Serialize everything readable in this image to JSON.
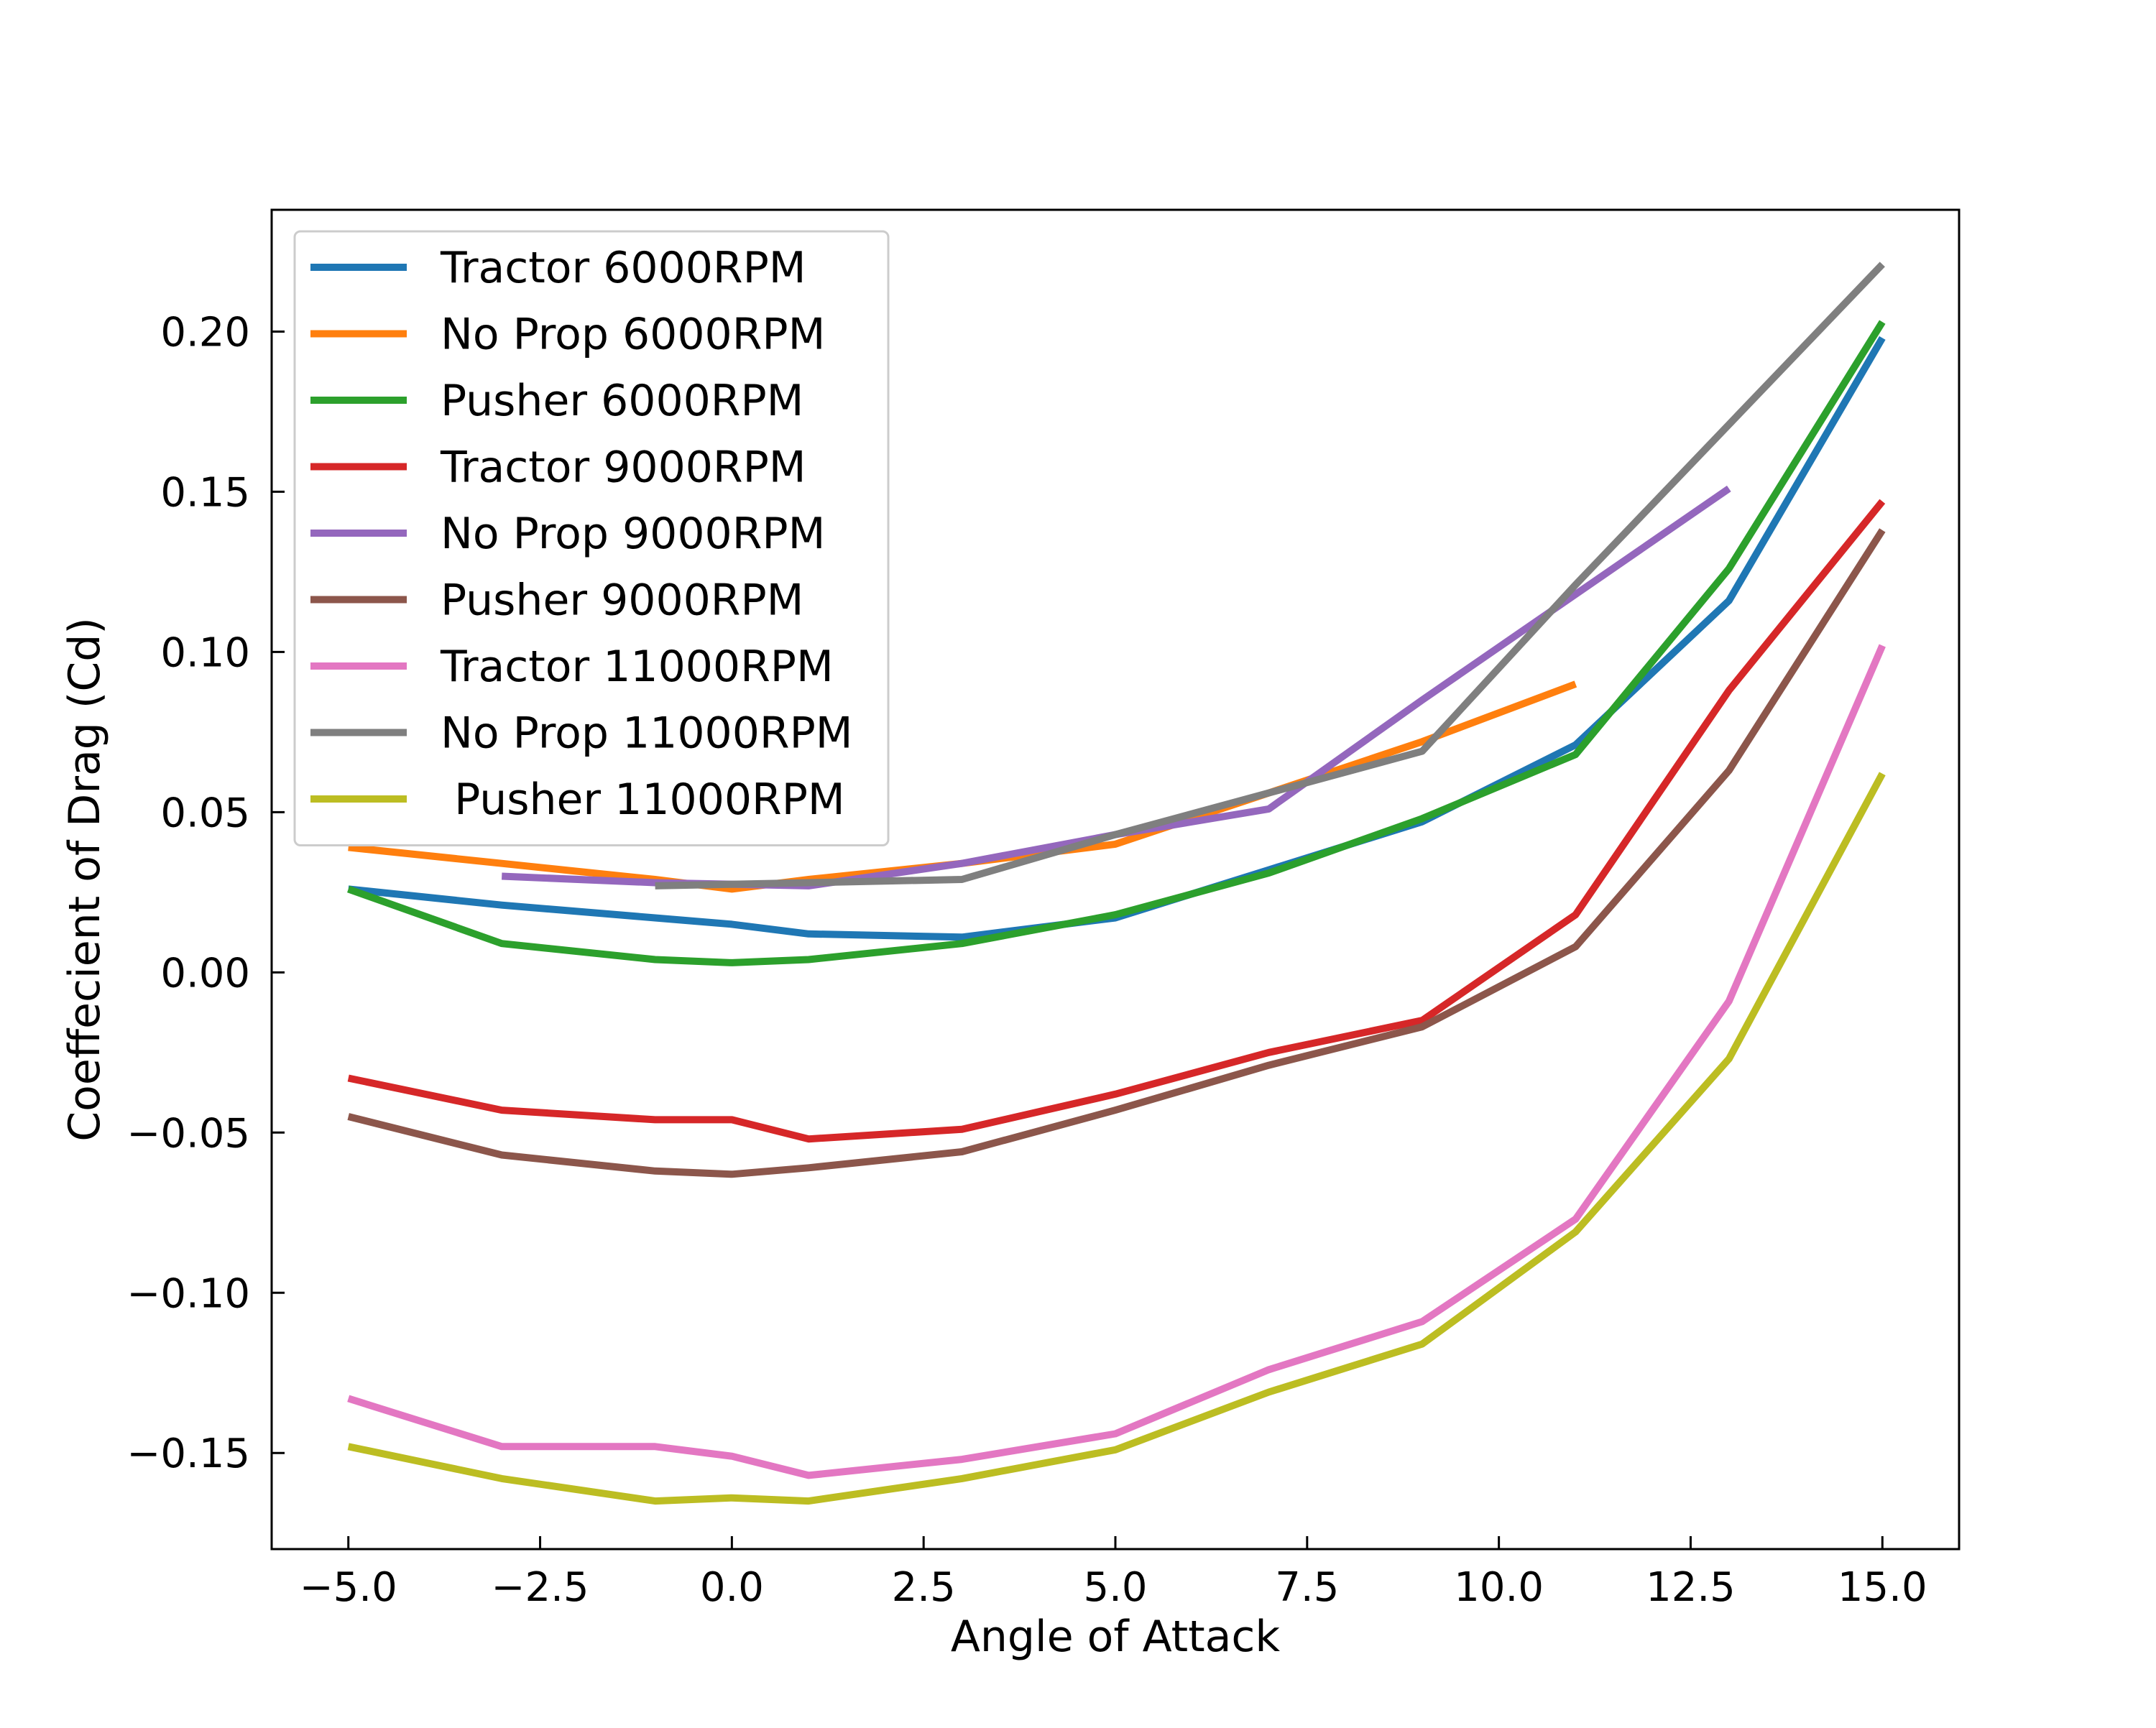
{
  "chart_data": {
    "type": "line",
    "xlabel": "Angle of Attack",
    "ylabel": "Coeffecient of Drag (Cd)",
    "xlim": [
      -6.0,
      16.0
    ],
    "ylim": [
      -0.18,
      0.238
    ],
    "x_ticks": [
      -5.0,
      -2.5,
      0.0,
      2.5,
      5.0,
      7.5,
      10.0,
      12.5,
      15.0
    ],
    "x_tick_labels": [
      "−5.0",
      "−2.5",
      "0.0",
      "2.5",
      "5.0",
      "7.5",
      "10.0",
      "12.5",
      "15.0"
    ],
    "y_ticks": [
      -0.15,
      -0.1,
      -0.05,
      0.0,
      0.05,
      0.1,
      0.15,
      0.2
    ],
    "y_tick_labels": [
      "−0.15",
      "−0.10",
      "−0.05",
      "0.00",
      "0.05",
      "0.10",
      "0.15",
      "0.20"
    ],
    "grid": false,
    "legend_position": "top-left",
    "series": [
      {
        "name": "Tractor 6000RPM",
        "color": "#1f77b4",
        "x": [
          -5,
          -3,
          -1,
          0,
          1,
          3,
          5,
          7,
          9,
          11,
          13,
          15
        ],
        "y": [
          0.026,
          0.021,
          0.017,
          0.015,
          0.012,
          0.011,
          0.017,
          0.032,
          0.047,
          0.071,
          0.116,
          0.198
        ]
      },
      {
        "name": "No Prop 6000RPM",
        "color": "#ff7f0e",
        "x": [
          -5,
          -3,
          -1,
          0,
          1,
          3,
          5,
          7,
          9,
          11
        ],
        "y": [
          0.039,
          0.034,
          0.029,
          0.026,
          0.029,
          0.034,
          0.04,
          0.056,
          0.072,
          0.09
        ]
      },
      {
        "name": "Pusher 6000RPM",
        "color": "#2ca02c",
        "x": [
          -5,
          -3,
          -1,
          0,
          1,
          3,
          5,
          7,
          9,
          11,
          13,
          15
        ],
        "y": [
          0.026,
          0.009,
          0.004,
          0.003,
          0.004,
          0.009,
          0.018,
          0.031,
          0.048,
          0.068,
          0.126,
          0.203
        ]
      },
      {
        "name": "Tractor 9000RPM",
        "color": "#d62728",
        "x": [
          -5,
          -3,
          -1,
          0,
          1,
          3,
          5,
          7,
          9,
          11,
          13,
          15
        ],
        "y": [
          -0.033,
          -0.043,
          -0.046,
          -0.046,
          -0.052,
          -0.049,
          -0.038,
          -0.025,
          -0.015,
          0.018,
          0.088,
          0.147
        ]
      },
      {
        "name": "No Prop 9000RPM",
        "color": "#9467bd",
        "x": [
          -3,
          -1,
          1,
          3,
          5,
          7,
          9,
          11,
          13
        ],
        "y": [
          0.03,
          0.028,
          0.027,
          0.034,
          0.043,
          0.051,
          0.085,
          0.118,
          0.151
        ]
      },
      {
        "name": "Pusher 9000RPM",
        "color": "#8c564b",
        "x": [
          -5,
          -3,
          -1,
          0,
          1,
          3,
          5,
          7,
          9,
          11,
          13,
          15
        ],
        "y": [
          -0.045,
          -0.057,
          -0.062,
          -0.063,
          -0.061,
          -0.056,
          -0.043,
          -0.029,
          -0.017,
          0.008,
          0.063,
          0.138
        ]
      },
      {
        "name": "Tractor 11000RPM",
        "color": "#e377c2",
        "x": [
          -5,
          -3,
          -1,
          0,
          1,
          3,
          5,
          7,
          9,
          11,
          13,
          15
        ],
        "y": [
          -0.133,
          -0.148,
          -0.148,
          -0.151,
          -0.157,
          -0.152,
          -0.144,
          -0.124,
          -0.109,
          -0.077,
          -0.009,
          0.102
        ]
      },
      {
        "name": "No Prop 11000RPM",
        "color": "#7f7f7f",
        "x": [
          -1,
          1,
          3,
          5,
          7,
          9,
          11,
          13,
          15
        ],
        "y": [
          0.027,
          0.028,
          0.029,
          0.043,
          0.056,
          0.069,
          0.121,
          0.171,
          0.221
        ]
      },
      {
        "name": " Pusher 11000RPM",
        "color": "#bcbd22",
        "x": [
          -5,
          -3,
          -1,
          0,
          1,
          3,
          5,
          7,
          9,
          11,
          13,
          15
        ],
        "y": [
          -0.148,
          -0.158,
          -0.165,
          -0.164,
          -0.165,
          -0.158,
          -0.149,
          -0.131,
          -0.116,
          -0.081,
          -0.027,
          0.062
        ]
      }
    ]
  }
}
